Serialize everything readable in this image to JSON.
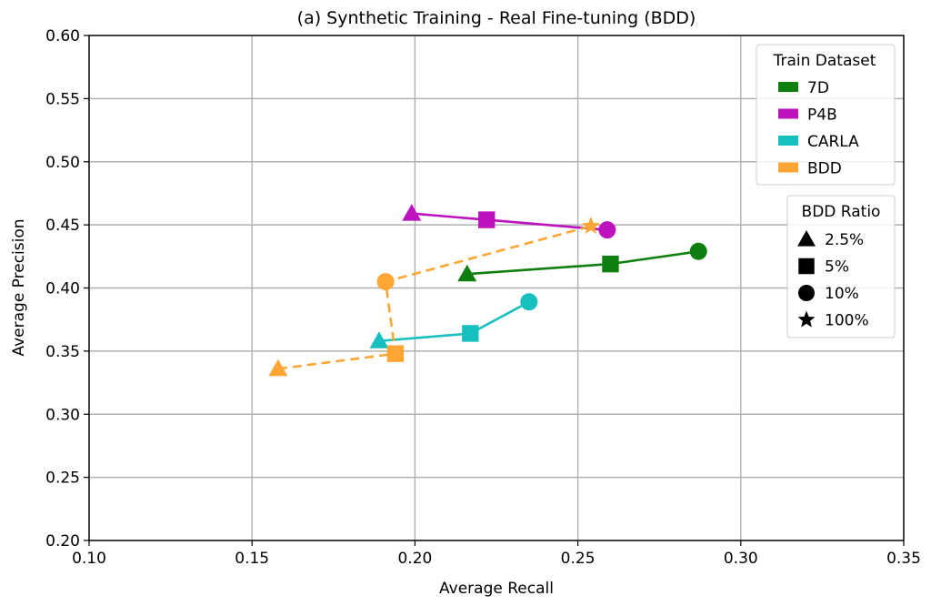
{
  "chart_data": {
    "type": "line",
    "title": "(a) Synthetic Training - Real Fine-tuning (BDD)",
    "xlabel": "Average Recall",
    "ylabel": "Average Precision",
    "xlim": [
      0.1,
      0.35
    ],
    "ylim": [
      0.2,
      0.6
    ],
    "xticks": [
      0.1,
      0.15,
      0.2,
      0.25,
      0.3,
      0.35
    ],
    "yticks": [
      0.2,
      0.25,
      0.3,
      0.35,
      0.4,
      0.45,
      0.5,
      0.55,
      0.6
    ],
    "xtick_labels": [
      "0.10",
      "0.15",
      "0.20",
      "0.25",
      "0.30",
      "0.35"
    ],
    "ytick_labels": [
      "0.20",
      "0.25",
      "0.30",
      "0.35",
      "0.40",
      "0.45",
      "0.50",
      "0.55",
      "0.60"
    ],
    "grid": true,
    "series": [
      {
        "name": "7D",
        "color": "#0f7f0f",
        "dashed": false,
        "points": [
          {
            "ratio": "2.5%",
            "marker": "triangle",
            "x": 0.216,
            "y": 0.411
          },
          {
            "ratio": "5%",
            "marker": "square",
            "x": 0.26,
            "y": 0.419
          },
          {
            "ratio": "10%",
            "marker": "circle",
            "x": 0.287,
            "y": 0.429
          }
        ]
      },
      {
        "name": "P4B",
        "color": "#bf12bf",
        "dashed": false,
        "points": [
          {
            "ratio": "2.5%",
            "marker": "triangle",
            "x": 0.199,
            "y": 0.459
          },
          {
            "ratio": "5%",
            "marker": "square",
            "x": 0.222,
            "y": 0.454
          },
          {
            "ratio": "10%",
            "marker": "circle",
            "x": 0.259,
            "y": 0.446
          }
        ]
      },
      {
        "name": "CARLA",
        "color": "#17bfbf",
        "dashed": false,
        "points": [
          {
            "ratio": "2.5%",
            "marker": "triangle",
            "x": 0.189,
            "y": 0.358
          },
          {
            "ratio": "5%",
            "marker": "square",
            "x": 0.217,
            "y": 0.364
          },
          {
            "ratio": "10%",
            "marker": "circle",
            "x": 0.235,
            "y": 0.389
          }
        ]
      },
      {
        "name": "BDD",
        "color": "#ffa533",
        "dashed": true,
        "points": [
          {
            "ratio": "2.5%",
            "marker": "triangle",
            "x": 0.158,
            "y": 0.336
          },
          {
            "ratio": "5%",
            "marker": "square",
            "x": 0.194,
            "y": 0.348
          },
          {
            "ratio": "10%",
            "marker": "circle",
            "x": 0.191,
            "y": 0.405
          },
          {
            "ratio": "100%",
            "marker": "star",
            "x": 0.254,
            "y": 0.449
          }
        ]
      }
    ],
    "legends": [
      {
        "title": "Train Dataset",
        "placement": "top-right",
        "entries": [
          {
            "label": "7D",
            "color": "#0f7f0f"
          },
          {
            "label": "P4B",
            "color": "#bf12bf"
          },
          {
            "label": "CARLA",
            "color": "#17bfbf"
          },
          {
            "label": "BDD",
            "color": "#ffa533"
          }
        ]
      },
      {
        "title": "BDD Ratio",
        "placement": "right",
        "entries": [
          {
            "label": "2.5%",
            "marker": "triangle"
          },
          {
            "label": "5%",
            "marker": "square"
          },
          {
            "label": "10%",
            "marker": "circle"
          },
          {
            "label": "100%",
            "marker": "star"
          }
        ]
      }
    ]
  }
}
